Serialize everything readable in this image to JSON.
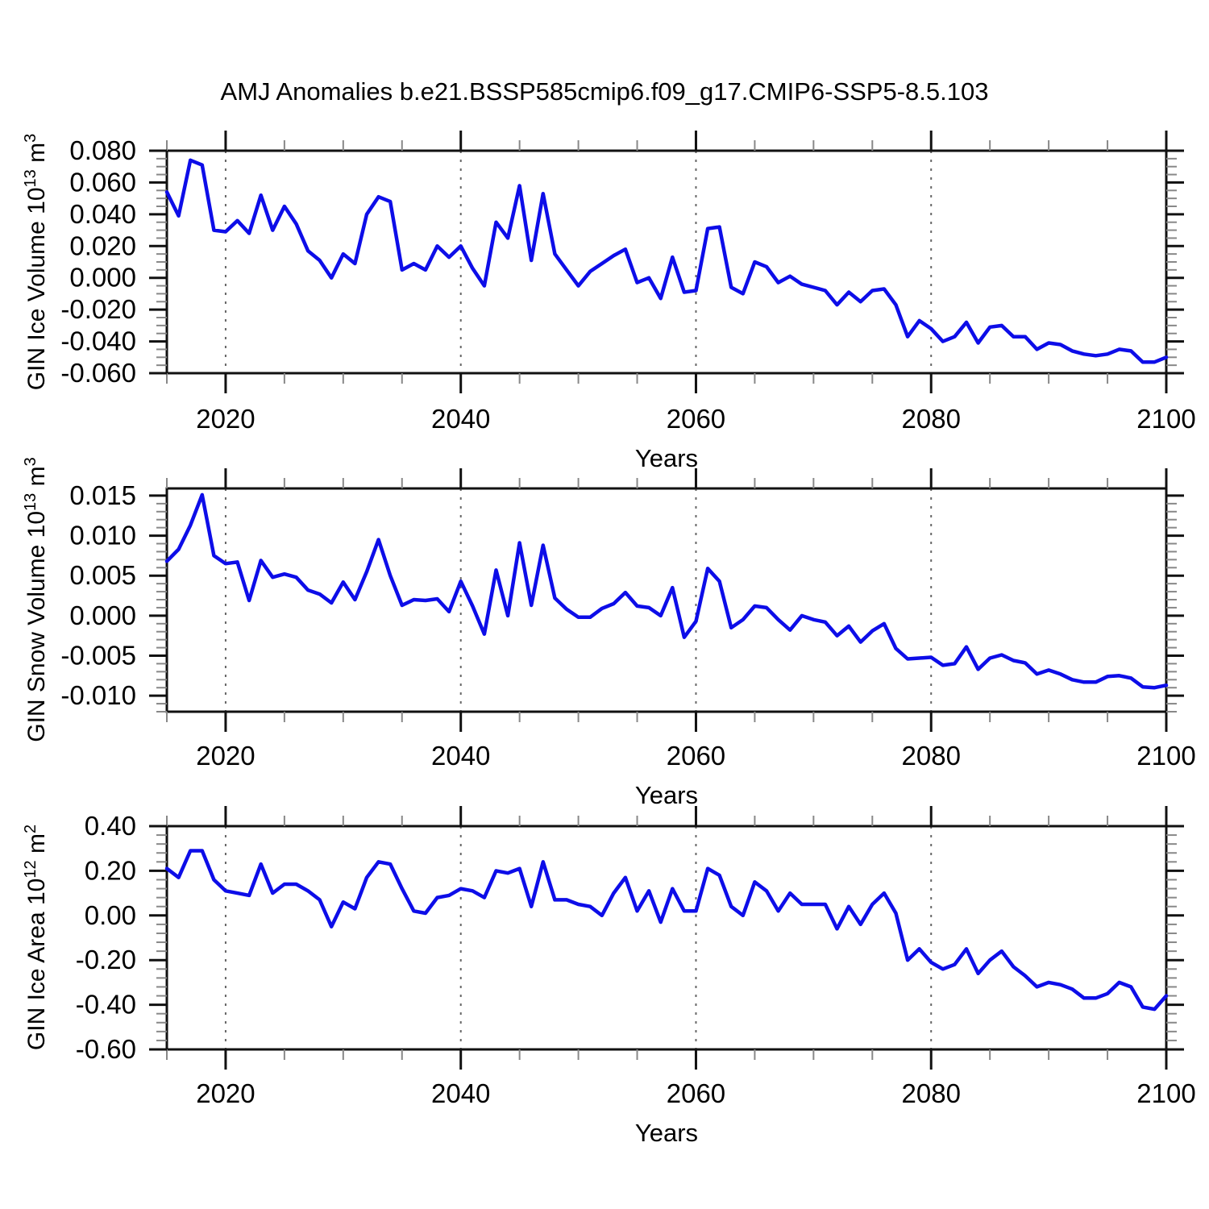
{
  "title": "AMJ Anomalies b.e21.BSSP585cmip6.f09_g17.CMIP6-SSP5-8.5.103",
  "line_color": "#0d0de8",
  "axis_color": "#111111",
  "minor_tick_color": "#888888",
  "grid_color": "#666666",
  "chart_data": [
    {
      "type": "line",
      "id": "gin-ice-volume",
      "ylabel": {
        "prefix": "GIN Ice Volume 10",
        "sup1": "13",
        "mid": " m",
        "sup2": "3"
      },
      "xlabel": "Years",
      "xlim": [
        2015,
        2100
      ],
      "ylim": [
        -0.06,
        0.08
      ],
      "xticks": [
        2020,
        2040,
        2060,
        2080,
        2100
      ],
      "xtick_labels": [
        "2020",
        "2040",
        "2060",
        "2080",
        "2100"
      ],
      "grid_years": [
        2020,
        2040,
        2060,
        2080
      ],
      "minor_x_step": 5,
      "minor_y_step": 0.005,
      "yticks": [
        0.08,
        0.06,
        0.04,
        0.02,
        0.0,
        -0.02,
        -0.04,
        -0.06
      ],
      "ytick_labels": [
        "0.080",
        "0.060",
        "0.040",
        "0.020",
        "0.000",
        "-0.020",
        "-0.040",
        "-0.060"
      ],
      "x_start": 2015,
      "x_step": 1,
      "values": [
        0.054,
        0.039,
        0.074,
        0.071,
        0.03,
        0.029,
        0.036,
        0.028,
        0.052,
        0.03,
        0.045,
        0.034,
        0.017,
        0.011,
        0.0,
        0.015,
        0.009,
        0.04,
        0.051,
        0.048,
        0.005,
        0.009,
        0.005,
        0.02,
        0.013,
        0.02,
        0.006,
        -0.005,
        0.035,
        0.025,
        0.058,
        0.011,
        0.053,
        0.015,
        0.005,
        -0.005,
        0.004,
        0.009,
        0.014,
        0.018,
        -0.003,
        0.0,
        -0.013,
        0.013,
        -0.009,
        -0.008,
        0.031,
        0.032,
        -0.006,
        -0.01,
        0.01,
        0.007,
        -0.003,
        0.001,
        -0.004,
        -0.006,
        -0.008,
        -0.017,
        -0.009,
        -0.015,
        -0.008,
        -0.007,
        -0.017,
        -0.037,
        -0.027,
        -0.032,
        -0.04,
        -0.037,
        -0.028,
        -0.041,
        -0.031,
        -0.03,
        -0.037,
        -0.037,
        -0.045,
        -0.041,
        -0.042,
        -0.046,
        -0.048,
        -0.049,
        -0.048,
        -0.045,
        -0.046,
        -0.053,
        -0.053,
        -0.05
      ]
    },
    {
      "type": "line",
      "id": "gin-snow-volume",
      "ylabel": {
        "prefix": "GIN Snow Volume 10",
        "sup1": "13",
        "mid": " m",
        "sup2": "3"
      },
      "xlabel": "Years",
      "xlim": [
        2015,
        2100
      ],
      "ylim": [
        -0.012,
        0.0159
      ],
      "xticks": [
        2020,
        2040,
        2060,
        2080,
        2100
      ],
      "xtick_labels": [
        "2020",
        "2040",
        "2060",
        "2080",
        "2100"
      ],
      "grid_years": [
        2020,
        2040,
        2060,
        2080
      ],
      "minor_x_step": 5,
      "minor_y_step": 0.001,
      "yticks": [
        0.015,
        0.01,
        0.005,
        0.0,
        -0.005,
        -0.01
      ],
      "ytick_labels": [
        "0.015",
        "0.010",
        "0.005",
        "0.000",
        "-0.005",
        "-0.010"
      ],
      "x_start": 2015,
      "x_step": 1,
      "values": [
        0.0068,
        0.0083,
        0.0113,
        0.0151,
        0.0075,
        0.0065,
        0.0067,
        0.0019,
        0.0069,
        0.0048,
        0.0052,
        0.0048,
        0.0032,
        0.0027,
        0.0016,
        0.0042,
        0.002,
        0.0055,
        0.0095,
        0.005,
        0.0013,
        0.002,
        0.0019,
        0.0021,
        0.0005,
        0.0043,
        0.0012,
        -0.0023,
        0.0057,
        0.0,
        0.0091,
        0.0013,
        0.0088,
        0.0022,
        0.0008,
        -0.0002,
        -0.0002,
        0.0009,
        0.0015,
        0.0029,
        0.0012,
        0.001,
        0.0,
        0.0035,
        -0.0027,
        -0.0007,
        0.0059,
        0.0043,
        -0.0015,
        -0.0005,
        0.0012,
        0.001,
        -0.0005,
        -0.0018,
        0.0,
        -0.0005,
        -0.0008,
        -0.0025,
        -0.0013,
        -0.0033,
        -0.0019,
        -0.001,
        -0.0041,
        -0.0054,
        -0.0053,
        -0.0052,
        -0.0062,
        -0.006,
        -0.0039,
        -0.0067,
        -0.0053,
        -0.0049,
        -0.0056,
        -0.0059,
        -0.0073,
        -0.0068,
        -0.0073,
        -0.008,
        -0.0083,
        -0.0083,
        -0.0076,
        -0.0075,
        -0.0078,
        -0.0089,
        -0.009,
        -0.0087
      ]
    },
    {
      "type": "line",
      "id": "gin-ice-area",
      "ylabel": {
        "prefix": "GIN Ice Area 10",
        "sup1": "12",
        "mid": " m",
        "sup2": "2"
      },
      "xlabel": "Years",
      "xlim": [
        2015,
        2100
      ],
      "ylim": [
        -0.6,
        0.4
      ],
      "xticks": [
        2020,
        2040,
        2060,
        2080,
        2100
      ],
      "xtick_labels": [
        "2020",
        "2040",
        "2060",
        "2080",
        "2100"
      ],
      "grid_years": [
        2020,
        2040,
        2060,
        2080
      ],
      "minor_x_step": 5,
      "minor_y_step": 0.04,
      "yticks": [
        0.4,
        0.2,
        0.0,
        -0.2,
        -0.4,
        -0.6
      ],
      "ytick_labels": [
        "0.40",
        "0.20",
        "0.00",
        "-0.20",
        "-0.40",
        "-0.60"
      ],
      "x_start": 2015,
      "x_step": 1,
      "values": [
        0.21,
        0.17,
        0.29,
        0.29,
        0.16,
        0.11,
        0.1,
        0.09,
        0.23,
        0.1,
        0.14,
        0.14,
        0.11,
        0.07,
        -0.05,
        0.06,
        0.03,
        0.17,
        0.24,
        0.23,
        0.12,
        0.02,
        0.01,
        0.08,
        0.09,
        0.12,
        0.11,
        0.08,
        0.2,
        0.19,
        0.21,
        0.04,
        0.24,
        0.07,
        0.07,
        0.05,
        0.04,
        0.0,
        0.1,
        0.17,
        0.02,
        0.11,
        -0.03,
        0.12,
        0.02,
        0.02,
        0.21,
        0.18,
        0.04,
        0.0,
        0.15,
        0.11,
        0.02,
        0.1,
        0.05,
        0.05,
        0.05,
        -0.06,
        0.04,
        -0.04,
        0.05,
        0.1,
        0.01,
        -0.2,
        -0.15,
        -0.21,
        -0.24,
        -0.22,
        -0.15,
        -0.26,
        -0.2,
        -0.16,
        -0.23,
        -0.27,
        -0.32,
        -0.3,
        -0.31,
        -0.33,
        -0.37,
        -0.37,
        -0.35,
        -0.3,
        -0.32,
        -0.41,
        -0.42,
        -0.36
      ]
    }
  ]
}
